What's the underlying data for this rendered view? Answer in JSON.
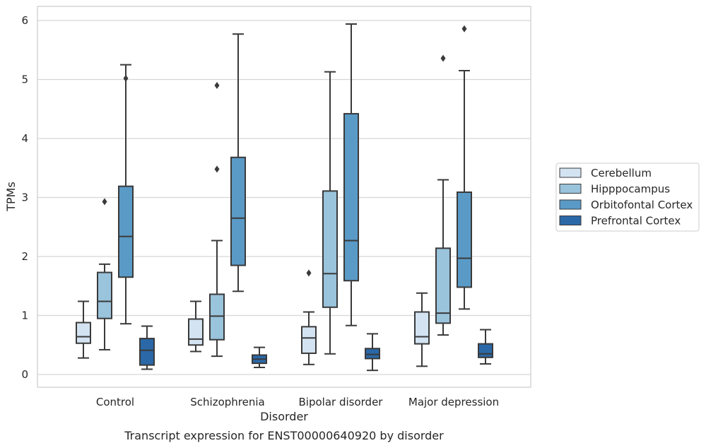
{
  "chart_data": {
    "type": "boxplot",
    "title": "",
    "caption": "Transcript expression for ENST00000640920 by disorder",
    "xlabel": "Disorder",
    "ylabel": "TPMs",
    "ylim": [
      -0.22,
      6.22
    ],
    "yticks": [
      0,
      1,
      2,
      3,
      4,
      5,
      6
    ],
    "grid": true,
    "legend_position": "right",
    "categories": [
      "Control",
      "Schizophrenia",
      "Bipolar disorder",
      "Major depression"
    ],
    "series": [
      {
        "name": "Cerebellum",
        "color": "#d3e3f1",
        "boxes": [
          {
            "whislo": 0.28,
            "q1": 0.53,
            "med": 0.64,
            "q3": 0.88,
            "whishi": 1.24,
            "fliers": []
          },
          {
            "whislo": 0.39,
            "q1": 0.5,
            "med": 0.6,
            "q3": 0.94,
            "whishi": 1.24,
            "fliers": []
          },
          {
            "whislo": 0.17,
            "q1": 0.36,
            "med": 0.62,
            "q3": 0.81,
            "whishi": 1.06,
            "fliers": [
              1.72
            ]
          },
          {
            "whislo": 0.14,
            "q1": 0.52,
            "med": 0.64,
            "q3": 1.06,
            "whishi": 1.38,
            "fliers": []
          }
        ]
      },
      {
        "name": "Hipppocampus",
        "color": "#9ac3dc",
        "boxes": [
          {
            "whislo": 0.42,
            "q1": 0.95,
            "med": 1.24,
            "q3": 1.73,
            "whishi": 1.87,
            "fliers": [
              2.93
            ]
          },
          {
            "whislo": 0.31,
            "q1": 0.59,
            "med": 0.99,
            "q3": 1.36,
            "whishi": 2.27,
            "fliers": [
              3.48,
              4.9
            ]
          },
          {
            "whislo": 0.35,
            "q1": 1.14,
            "med": 1.71,
            "q3": 3.11,
            "whishi": 5.13,
            "fliers": []
          },
          {
            "whislo": 0.67,
            "q1": 0.87,
            "med": 1.04,
            "q3": 2.14,
            "whishi": 3.3,
            "fliers": [
              5.36
            ]
          }
        ]
      },
      {
        "name": "Orbitofontal Cortex",
        "color": "#5a9ac6",
        "boxes": [
          {
            "whislo": 0.86,
            "q1": 1.65,
            "med": 2.34,
            "q3": 3.19,
            "whishi": 5.25,
            "fliers": [
              5.02
            ]
          },
          {
            "whislo": 1.41,
            "q1": 1.85,
            "med": 2.65,
            "q3": 3.68,
            "whishi": 5.77,
            "fliers": []
          },
          {
            "whislo": 0.83,
            "q1": 1.59,
            "med": 2.27,
            "q3": 4.42,
            "whishi": 5.94,
            "fliers": []
          },
          {
            "whislo": 1.11,
            "q1": 1.48,
            "med": 1.97,
            "q3": 3.09,
            "whishi": 5.15,
            "fliers": [
              5.86
            ]
          }
        ]
      },
      {
        "name": "Prefrontal Cortex",
        "color": "#2a68a7",
        "boxes": [
          {
            "whislo": 0.09,
            "q1": 0.16,
            "med": 0.41,
            "q3": 0.61,
            "whishi": 0.82,
            "fliers": []
          },
          {
            "whislo": 0.12,
            "q1": 0.19,
            "med": 0.26,
            "q3": 0.33,
            "whishi": 0.46,
            "fliers": []
          },
          {
            "whislo": 0.07,
            "q1": 0.27,
            "med": 0.34,
            "q3": 0.44,
            "whishi": 0.69,
            "fliers": []
          },
          {
            "whislo": 0.18,
            "q1": 0.29,
            "med": 0.35,
            "q3": 0.52,
            "whishi": 0.76,
            "fliers": []
          }
        ]
      }
    ]
  }
}
